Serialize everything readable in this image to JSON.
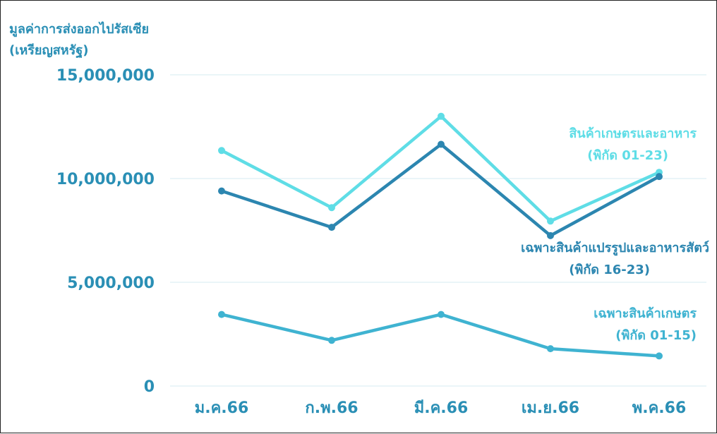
{
  "chart_data": {
    "type": "line",
    "ylabel": [
      "มูลค่าการส่งออกไปรัสเซีย",
      "(เหรียญสหรัฐ)"
    ],
    "categories": [
      "ม.ค.66",
      "ก.พ.66",
      "มี.ค.66",
      "เม.ย.66",
      "พ.ค.66"
    ],
    "yticks": [
      "0",
      "5,000,000",
      "10,000,000",
      "15,000,000"
    ],
    "ylim": [
      0,
      15000000
    ],
    "grid": true,
    "series": [
      {
        "name": [
          "สินค้าเกษตรและอาหาร",
          "(พิกัด 01-23)"
        ],
        "color": "#5fdde6",
        "values": [
          11350000,
          8600000,
          13000000,
          7950000,
          10300000
        ]
      },
      {
        "name": [
          "เฉพาะสินค้าแปรรูปและอาหารสัตว์",
          "(พิกัด 16-23)"
        ],
        "color": "#2c86b0",
        "values": [
          9400000,
          7650000,
          11650000,
          7250000,
          10100000
        ]
      },
      {
        "name": [
          "เฉพาะสินค้าเกษตร",
          "(พิกัด 01-15)"
        ],
        "color": "#3fb3d1",
        "values": [
          3450000,
          2200000,
          3450000,
          1800000,
          1450000
        ]
      }
    ]
  }
}
